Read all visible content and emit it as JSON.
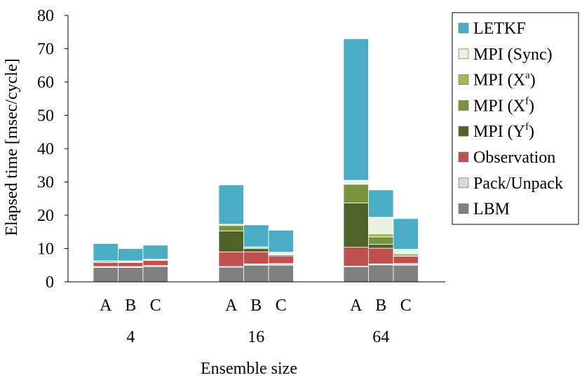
{
  "chart_data": {
    "type": "bar",
    "stacked": true,
    "title": "",
    "xlabel": "Ensemble size",
    "ylabel": "Elapsed time [msec/cycle]",
    "ylim": [
      0,
      80
    ],
    "yticks": [
      0,
      10,
      20,
      30,
      40,
      50,
      60,
      70,
      80
    ],
    "grid": false,
    "legend_position": "right",
    "groups": [
      "4",
      "16",
      "64"
    ],
    "categories": [
      "A",
      "B",
      "C"
    ],
    "series": [
      {
        "name": "LBM",
        "color": "#808080",
        "values": [
          [
            4.3,
            4.3,
            4.6
          ],
          [
            4.4,
            5.0,
            5.0
          ],
          [
            4.5,
            5.1,
            5.0
          ]
        ]
      },
      {
        "name": "Pack/Unpack",
        "color": "#d9d9d9",
        "values": [
          [
            0.3,
            0.3,
            0.3
          ],
          [
            0.2,
            0.4,
            0.5
          ],
          [
            0.2,
            0.3,
            0.5
          ]
        ]
      },
      {
        "name": "Observation",
        "color": "#c0504d",
        "values": [
          [
            1.2,
            1.2,
            1.5
          ],
          [
            4.4,
            3.6,
            2.3
          ],
          [
            5.7,
            4.7,
            2.2
          ]
        ]
      },
      {
        "name": "MPI (Yf)",
        "color": "#4f6228",
        "values": [
          [
            0.3,
            0.2,
            0.2
          ],
          [
            6.3,
            1.0,
            0.3
          ],
          [
            13.3,
            1.2,
            0.3
          ]
        ]
      },
      {
        "name": "MPI (Xf)",
        "color": "#77933c",
        "values": [
          [
            0.1,
            0.1,
            0.1
          ],
          [
            1.6,
            0.3,
            0.2
          ],
          [
            5.6,
            2.2,
            0.4
          ]
        ]
      },
      {
        "name": "MPI (Xa)",
        "color": "#9bbb59",
        "values": [
          [
            0.0,
            0.0,
            0.0
          ],
          [
            0.3,
            0.1,
            0.1
          ],
          [
            0.2,
            0.9,
            0.1
          ]
        ]
      },
      {
        "name": "MPI (Sync)",
        "color": "#ebf1de",
        "values": [
          [
            0.1,
            0.2,
            0.1
          ],
          [
            0.1,
            0.1,
            0.5
          ],
          [
            1.0,
            5.0,
            1.3
          ]
        ]
      },
      {
        "name": "LETKF",
        "color": "#4bacc6",
        "values": [
          [
            5.2,
            3.7,
            4.2
          ],
          [
            11.8,
            6.6,
            6.6
          ],
          [
            42.5,
            8.2,
            9.2
          ]
        ]
      }
    ],
    "legend_entries": [
      {
        "label": "LETKF",
        "sup": ""
      },
      {
        "label": "MPI (Sync)",
        "sup": ""
      },
      {
        "label": "MPI (X",
        "sup": "a",
        "suffix": ")"
      },
      {
        "label": "MPI (X",
        "sup": "f",
        "suffix": ")"
      },
      {
        "label": "MPI (Y",
        "sup": "f",
        "suffix": ")"
      },
      {
        "label": "Observation",
        "sup": ""
      },
      {
        "label": "Pack/Unpack",
        "sup": ""
      },
      {
        "label": "LBM",
        "sup": ""
      }
    ],
    "legend_colors": [
      "#4bacc6",
      "#ebf1de",
      "#9bbb59",
      "#77933c",
      "#4f6228",
      "#c0504d",
      "#d9d9d9",
      "#808080"
    ]
  }
}
